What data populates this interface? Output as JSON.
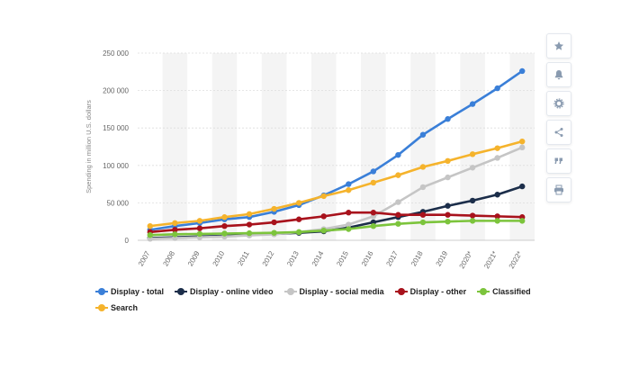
{
  "chart_data": {
    "type": "line",
    "title": "",
    "xlabel": "",
    "ylabel": "Spending in million U.S. dollars",
    "ylim": [
      0,
      250000
    ],
    "yticks": [
      0,
      50000,
      100000,
      150000,
      200000,
      250000
    ],
    "ytick_labels": [
      "0",
      "50 000",
      "100 000",
      "150 000",
      "200 000",
      "250 000"
    ],
    "grid": true,
    "legend_position": "bottom-left",
    "categories": [
      "2007",
      "2008",
      "2009",
      "2010",
      "2011",
      "2012",
      "2013",
      "2014",
      "2015",
      "2016",
      "2017",
      "2018",
      "2019",
      "2020*",
      "2021*",
      "2022*"
    ],
    "series": [
      {
        "name": "Display - total",
        "color": "#3a7fd8",
        "values": [
          14000,
          19000,
          23000,
          28000,
          31000,
          38000,
          47000,
          60000,
          75000,
          92000,
          114000,
          141000,
          162000,
          182000,
          203000,
          226000
        ]
      },
      {
        "name": "Display - online video",
        "color": "#1c2e4a",
        "values": [
          3000,
          4000,
          5000,
          6000,
          7000,
          8500,
          10000,
          12000,
          17000,
          24000,
          31000,
          38000,
          46000,
          53000,
          61000,
          72000
        ]
      },
      {
        "name": "Display - social media",
        "color": "#c5c5c5",
        "values": [
          2000,
          3000,
          4000,
          5000,
          6500,
          8000,
          11000,
          15000,
          21000,
          32000,
          51000,
          71000,
          84000,
          97000,
          110000,
          124000
        ]
      },
      {
        "name": "Display - other",
        "color": "#a8121c",
        "values": [
          11000,
          14000,
          16000,
          19000,
          21000,
          24000,
          28000,
          32000,
          37000,
          37000,
          34000,
          34000,
          34000,
          33000,
          32000,
          31000
        ]
      },
      {
        "name": "Classified",
        "color": "#7cc43c",
        "values": [
          7000,
          8000,
          8500,
          9000,
          9500,
          10000,
          11000,
          13000,
          15000,
          19000,
          22000,
          24000,
          25000,
          26000,
          26000,
          26000
        ]
      },
      {
        "name": "Search",
        "color": "#f5b32c",
        "values": [
          19000,
          23000,
          26000,
          31000,
          35000,
          42000,
          50000,
          59000,
          67000,
          77000,
          87000,
          98000,
          106000,
          115000,
          123000,
          132000
        ]
      }
    ]
  },
  "toolbar": {
    "buttons": [
      {
        "name": "star-icon",
        "icon": "star"
      },
      {
        "name": "bell-icon",
        "icon": "bell"
      },
      {
        "name": "gear-icon",
        "icon": "gear"
      },
      {
        "name": "share-icon",
        "icon": "share"
      },
      {
        "name": "quote-icon",
        "icon": "quote"
      },
      {
        "name": "print-icon",
        "icon": "print"
      }
    ],
    "icon_color": "#8a9bb0"
  }
}
